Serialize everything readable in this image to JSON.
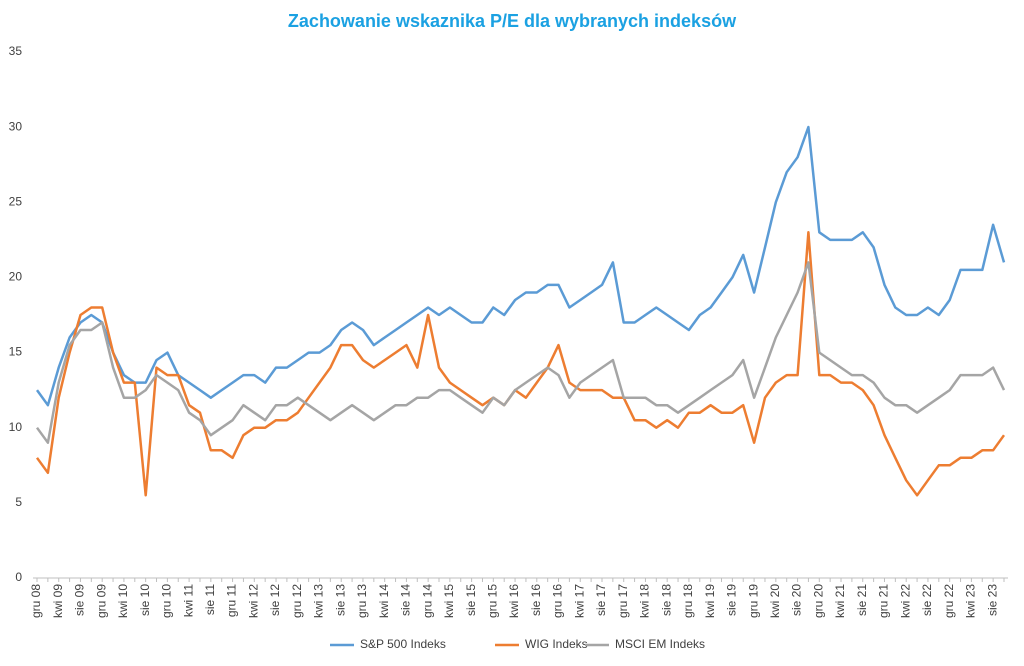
{
  "chart_data": {
    "type": "line",
    "title": "Zachowanie wskaznika P/E dla wybranych indeksów",
    "categories": [
      "gru 08",
      null,
      "kwi 09",
      null,
      "sie 09",
      null,
      "gru 09",
      null,
      "kwi 10",
      null,
      "sie 10",
      null,
      "gru 10",
      null,
      "kwi 11",
      null,
      "sie 11",
      null,
      "gru 11",
      null,
      "kwi 12",
      null,
      "sie 12",
      null,
      "gru 12",
      null,
      "kwi 13",
      null,
      "sie 13",
      null,
      "gru 13",
      null,
      "kwi 14",
      null,
      "sie 14",
      null,
      "gru 14",
      null,
      "kwi 15",
      null,
      "sie 15",
      null,
      "gru 15",
      null,
      "kwi 16",
      null,
      "sie 16",
      null,
      "gru 16",
      null,
      "kwi 17",
      null,
      "sie 17",
      null,
      "gru 17",
      null,
      "kwi 18",
      null,
      "sie 18",
      null,
      "gru 18",
      null,
      "kwi 19",
      null,
      "sie 19",
      null,
      "gru 19",
      null,
      "kwi 20",
      null,
      "sie 20",
      null,
      "gru 20",
      null,
      "kwi 21",
      null,
      "sie 21",
      null,
      "gru 21",
      null,
      "kwi 22",
      null,
      "sie 22",
      null,
      "gru 22",
      null,
      "kwi 23",
      null,
      "sie 23",
      null
    ],
    "series": [
      {
        "name": "S&P 500 Indeks",
        "color": "#5b9bd5",
        "values": [
          12.5,
          11.5,
          14,
          16,
          17,
          17.5,
          17,
          15,
          13.5,
          13,
          13,
          14.5,
          15,
          13.5,
          13,
          12.5,
          12,
          12.5,
          13,
          13.5,
          13.5,
          13,
          14,
          14,
          14.5,
          15,
          15,
          15.5,
          16.5,
          17,
          16.5,
          15.5,
          16,
          16.5,
          17,
          17.5,
          18,
          17.5,
          18,
          17.5,
          17,
          17,
          18,
          17.5,
          18.5,
          19,
          19,
          19.5,
          19.5,
          18,
          18.5,
          19,
          19.5,
          21,
          17,
          17,
          17.5,
          18,
          17.5,
          17,
          16.5,
          17.5,
          18,
          19,
          20,
          21.5,
          19,
          22,
          25,
          27,
          28,
          30,
          23,
          22.5,
          22.5,
          22.5,
          23,
          22,
          19.5,
          18,
          17.5,
          17.5,
          18,
          17.5,
          18.5,
          20.5,
          20.5,
          20.5,
          23.5,
          21
        ]
      },
      {
        "name": "WIG Indeks",
        "color": "#ed7d31",
        "values": [
          8,
          7,
          12,
          15,
          17.5,
          18,
          18,
          15,
          13,
          13,
          5.5,
          14,
          13.5,
          13.5,
          11.5,
          11,
          8.5,
          8.5,
          8,
          9.5,
          10,
          10,
          10.5,
          10.5,
          11,
          12,
          13,
          14,
          15.5,
          15.5,
          14.5,
          14,
          14.5,
          15,
          15.5,
          14,
          17.5,
          14,
          13,
          12.5,
          12,
          11.5,
          12,
          11.5,
          12.5,
          12,
          13,
          14,
          15.5,
          13,
          12.5,
          12.5,
          12.5,
          12,
          12,
          10.5,
          10.5,
          10,
          10.5,
          10,
          11,
          11,
          11.5,
          11,
          11,
          11.5,
          9,
          12,
          13,
          13.5,
          13.5,
          23,
          13.5,
          13.5,
          13,
          13,
          12.5,
          11.5,
          9.5,
          8,
          6.5,
          5.5,
          6.5,
          7.5,
          7.5,
          8,
          8,
          8.5,
          8.5,
          9.5
        ]
      },
      {
        "name": "MSCI EM  Indeks",
        "color": "#a5a5a5",
        "values": [
          10,
          9,
          13,
          15.5,
          16.5,
          16.5,
          17,
          14,
          12,
          12,
          12.5,
          13.5,
          13,
          12.5,
          11,
          10.5,
          9.5,
          10,
          10.5,
          11.5,
          11,
          10.5,
          11.5,
          11.5,
          12,
          11.5,
          11,
          10.5,
          11,
          11.5,
          11,
          10.5,
          11,
          11.5,
          11.5,
          12,
          12,
          12.5,
          12.5,
          12,
          11.5,
          11,
          12,
          11.5,
          12.5,
          13,
          13.5,
          14,
          13.5,
          12,
          13,
          13.5,
          14,
          14.5,
          12,
          12,
          12,
          11.5,
          11.5,
          11,
          11.5,
          12,
          12.5,
          13,
          13.5,
          14.5,
          12,
          14,
          16,
          17.5,
          19,
          21,
          15,
          14.5,
          14,
          13.5,
          13.5,
          13,
          12,
          11.5,
          11.5,
          11,
          11.5,
          12,
          12.5,
          13.5,
          13.5,
          13.5,
          14,
          12.5
        ]
      }
    ],
    "ylim": [
      0,
      35
    ],
    "yticks": [
      0,
      5,
      10,
      15,
      20,
      25,
      30,
      35
    ],
    "grid": false,
    "legend": "bottom"
  }
}
